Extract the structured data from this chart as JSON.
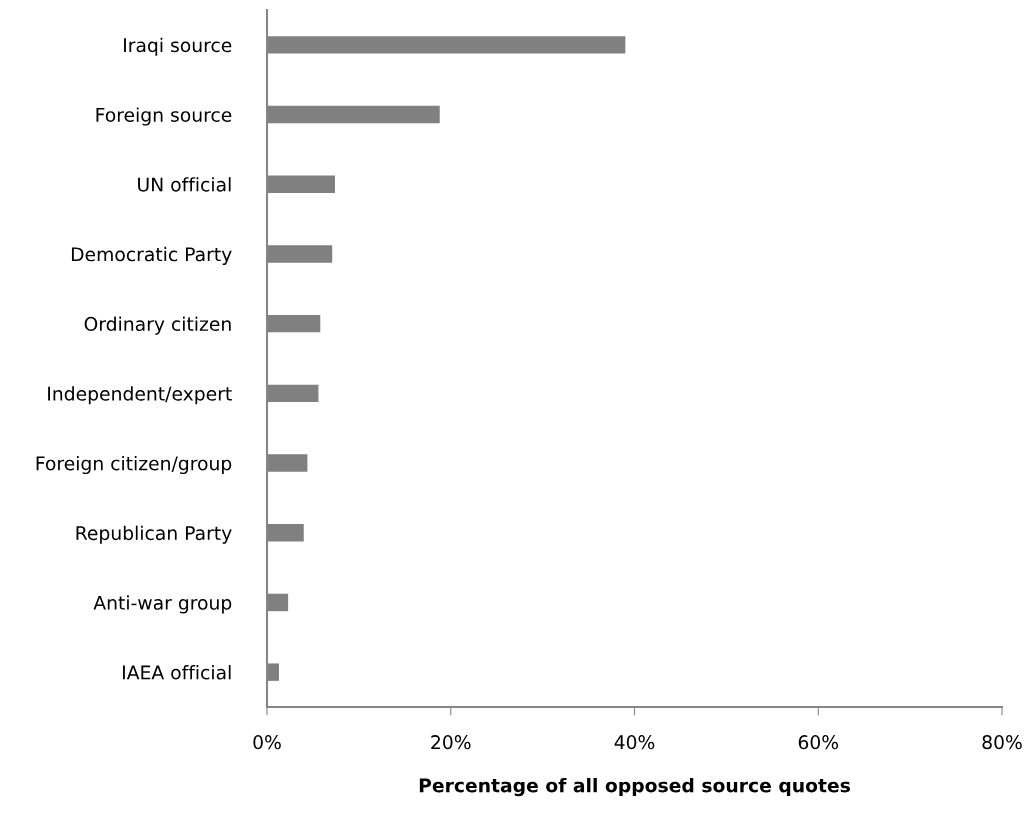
{
  "chart_data": {
    "type": "bar",
    "orientation": "horizontal",
    "xlabel": "Percentage of all opposed source quotes",
    "categories": [
      "Iraqi source",
      "Foreign source",
      "UN official",
      "Democratic Party",
      "Ordinary citizen",
      "Independent/expert",
      "Foreign citizen/group",
      "Republican Party",
      "Anti-war group",
      "IAEA official"
    ],
    "values": [
      39.0,
      18.8,
      7.4,
      7.1,
      5.8,
      5.6,
      4.4,
      4.0,
      2.3,
      1.3
    ],
    "color": "#808080",
    "xlim": [
      0,
      80
    ],
    "xticks": [
      {
        "value": 0,
        "label": "0%"
      },
      {
        "value": 20,
        "label": "20%"
      },
      {
        "value": 40,
        "label": "40%"
      },
      {
        "value": 60,
        "label": "60%"
      },
      {
        "value": 80,
        "label": "80%"
      }
    ],
    "grid": false,
    "legend": false
  }
}
